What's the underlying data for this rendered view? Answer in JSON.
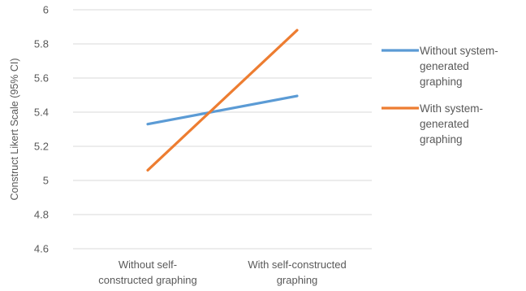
{
  "chart_data": {
    "type": "line",
    "title": "",
    "xlabel": "",
    "ylabel": "Construct Likert Scale (95% CI)",
    "ylim": [
      4.6,
      6
    ],
    "yticks": [
      "4.6",
      "4.8",
      "5",
      "5.2",
      "5.4",
      "5.6",
      "5.8",
      "6"
    ],
    "grid": true,
    "legend_position": "right",
    "categories": [
      [
        "Without self-",
        "constructed graphing"
      ],
      [
        "With self-constructed",
        "graphing"
      ]
    ],
    "series": [
      {
        "name": [
          "Without system-",
          "generated",
          "graphing"
        ],
        "color": "#5B9BD5",
        "values": [
          5.33,
          5.495
        ]
      },
      {
        "name": [
          "With system-",
          "generated",
          "graphing"
        ],
        "color": "#ED7D31",
        "values": [
          5.06,
          5.88
        ]
      }
    ]
  }
}
